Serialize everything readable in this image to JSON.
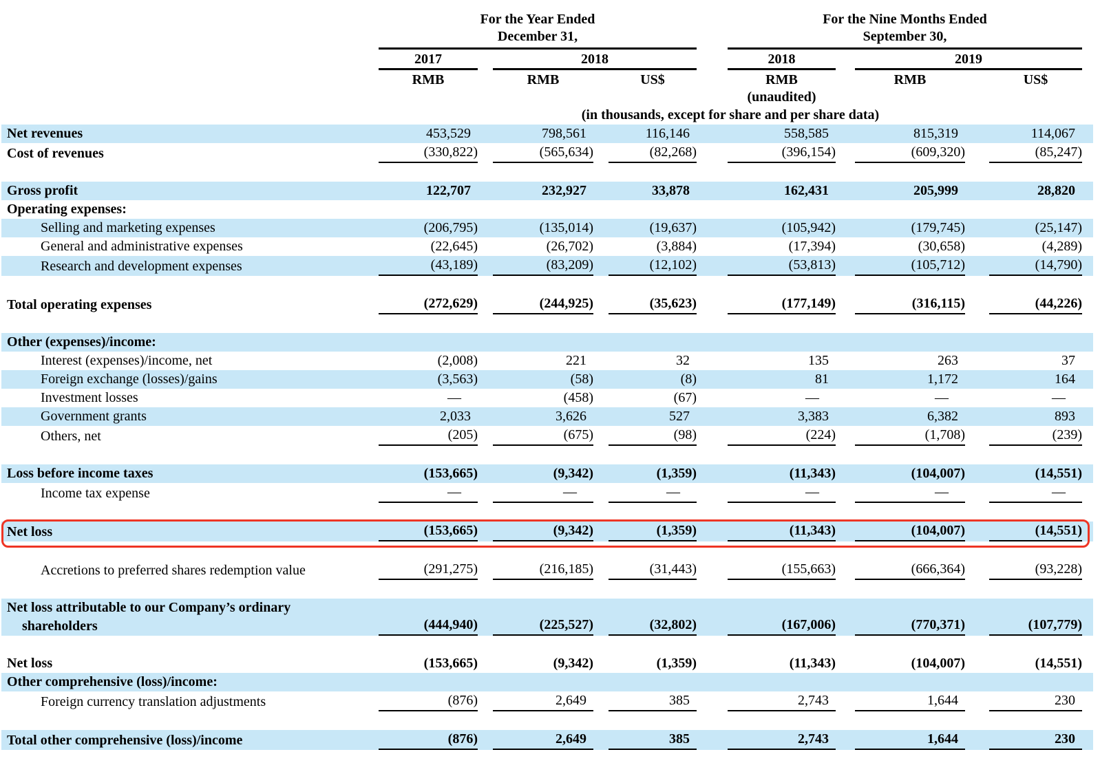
{
  "colors": {
    "stripe": "#c8e7f7",
    "highlight_border": "#ee3524",
    "text": "#000000"
  },
  "header": {
    "group1": {
      "line1": "For the Year Ended",
      "line2": "December 31,"
    },
    "group2": {
      "line1": "For the Nine Months Ended",
      "line2": "September 30,"
    },
    "years": {
      "fy2017": "2017",
      "fy2018": "2018",
      "nm2018": "2018",
      "nm2019": "2019"
    },
    "currencies": [
      "RMB",
      "RMB",
      "US$",
      "RMB",
      "RMB",
      "US$"
    ],
    "unaudited": "(unaudited)",
    "note": "(in thousands, except for share and per share data)"
  },
  "rows": [
    {
      "label": "Net revenues",
      "bold": true,
      "stripe": true,
      "values": [
        "453,529",
        "798,561",
        "116,146",
        "558,585",
        "815,319",
        "114,067"
      ]
    },
    {
      "label": "Cost of revenues",
      "bold": true,
      "underline": true,
      "values": [
        "(330,822)",
        "(565,634)",
        "(82,268)",
        "(396,154)",
        "(609,320)",
        "(85,247)"
      ]
    },
    {
      "spacer": true
    },
    {
      "label": "Gross profit",
      "bold": true,
      "stripe": true,
      "bold_values": true,
      "values": [
        "122,707",
        "232,927",
        "33,878",
        "162,431",
        "205,999",
        "28,820"
      ]
    },
    {
      "label": "Operating expenses:",
      "bold": true
    },
    {
      "label": "Selling and marketing expenses",
      "indent": 1,
      "stripe": true,
      "values": [
        "(206,795)",
        "(135,014)",
        "(19,637)",
        "(105,942)",
        "(179,745)",
        "(25,147)"
      ]
    },
    {
      "label": "General and administrative expenses",
      "indent": 1,
      "values": [
        "(22,645)",
        "(26,702)",
        "(3,884)",
        "(17,394)",
        "(30,658)",
        "(4,289)"
      ]
    },
    {
      "label": "Research and development expenses",
      "indent": 1,
      "stripe": true,
      "underline": true,
      "values": [
        "(43,189)",
        "(83,209)",
        "(12,102)",
        "(53,813)",
        "(105,712)",
        "(14,790)"
      ]
    },
    {
      "spacer": true
    },
    {
      "label": "Total operating expenses",
      "bold": true,
      "bold_values": true,
      "underline": true,
      "values": [
        "(272,629)",
        "(244,925)",
        "(35,623)",
        "(177,149)",
        "(316,115)",
        "(44,226)"
      ]
    },
    {
      "spacer": true
    },
    {
      "label": "Other (expenses)/income:",
      "bold": true,
      "stripe": true
    },
    {
      "label": "Interest (expenses)/income, net",
      "indent": 1,
      "values": [
        "(2,008)",
        "221",
        "32",
        "135",
        "263",
        "37"
      ]
    },
    {
      "label": "Foreign exchange (losses)/gains",
      "indent": 1,
      "stripe": true,
      "values": [
        "(3,563)",
        "(58)",
        "(8)",
        "81",
        "1,172",
        "164"
      ]
    },
    {
      "label": "Investment losses",
      "indent": 1,
      "values": [
        "—",
        "(458)",
        "(67)",
        "—",
        "—",
        "—"
      ]
    },
    {
      "label": "Government grants",
      "indent": 1,
      "stripe": true,
      "values": [
        "2,033",
        "3,626",
        "527",
        "3,383",
        "6,382",
        "893"
      ]
    },
    {
      "label": "Others, net",
      "indent": 1,
      "underline": true,
      "values": [
        "(205)",
        "(675)",
        "(98)",
        "(224)",
        "(1,708)",
        "(239)"
      ]
    },
    {
      "spacer": true
    },
    {
      "label": "Loss before income taxes",
      "bold": true,
      "stripe": true,
      "bold_values": true,
      "values": [
        "(153,665)",
        "(9,342)",
        "(1,359)",
        "(11,343)",
        "(104,007)",
        "(14,551)"
      ]
    },
    {
      "label": "Income tax expense",
      "indent": 1,
      "underline": true,
      "values": [
        "—",
        "—",
        "—",
        "—",
        "—",
        "—"
      ]
    },
    {
      "spacer": true
    },
    {
      "label": "Net loss",
      "bold": true,
      "stripe": true,
      "bold_values": true,
      "underline": true,
      "highlight": true,
      "values": [
        "(153,665)",
        "(9,342)",
        "(1,359)",
        "(11,343)",
        "(104,007)",
        "(14,551)"
      ]
    },
    {
      "spacer": true
    },
    {
      "label": "Accretions to preferred shares redemption value",
      "indent": 1,
      "underline": true,
      "values": [
        "(291,275)",
        "(216,185)",
        "(31,443)",
        "(155,663)",
        "(666,364)",
        "(93,228)"
      ]
    },
    {
      "spacer": true
    },
    {
      "label": "Net loss attributable to our Company’s ordinary",
      "label2": "shareholders",
      "bold": true,
      "stripe": true,
      "bold_values": true,
      "underline": true,
      "values": [
        "(444,940)",
        "(225,527)",
        "(32,802)",
        "(167,006)",
        "(770,371)",
        "(107,779)"
      ]
    },
    {
      "spacer": true
    },
    {
      "label": "Net loss",
      "bold": true,
      "bold_values": true,
      "values": [
        "(153,665)",
        "(9,342)",
        "(1,359)",
        "(11,343)",
        "(104,007)",
        "(14,551)"
      ]
    },
    {
      "label": "Other comprehensive (loss)/income:",
      "bold": true,
      "stripe": true
    },
    {
      "label": "Foreign currency translation adjustments",
      "indent": 1,
      "underline": true,
      "values": [
        "(876)",
        "2,649",
        "385",
        "2,743",
        "1,644",
        "230"
      ]
    },
    {
      "spacer": true
    },
    {
      "label": "Total other comprehensive (loss)/income",
      "bold": true,
      "stripe": true,
      "bold_values": true,
      "underline": true,
      "values": [
        "(876)",
        "2,649",
        "385",
        "2,743",
        "1,644",
        "230"
      ]
    }
  ]
}
